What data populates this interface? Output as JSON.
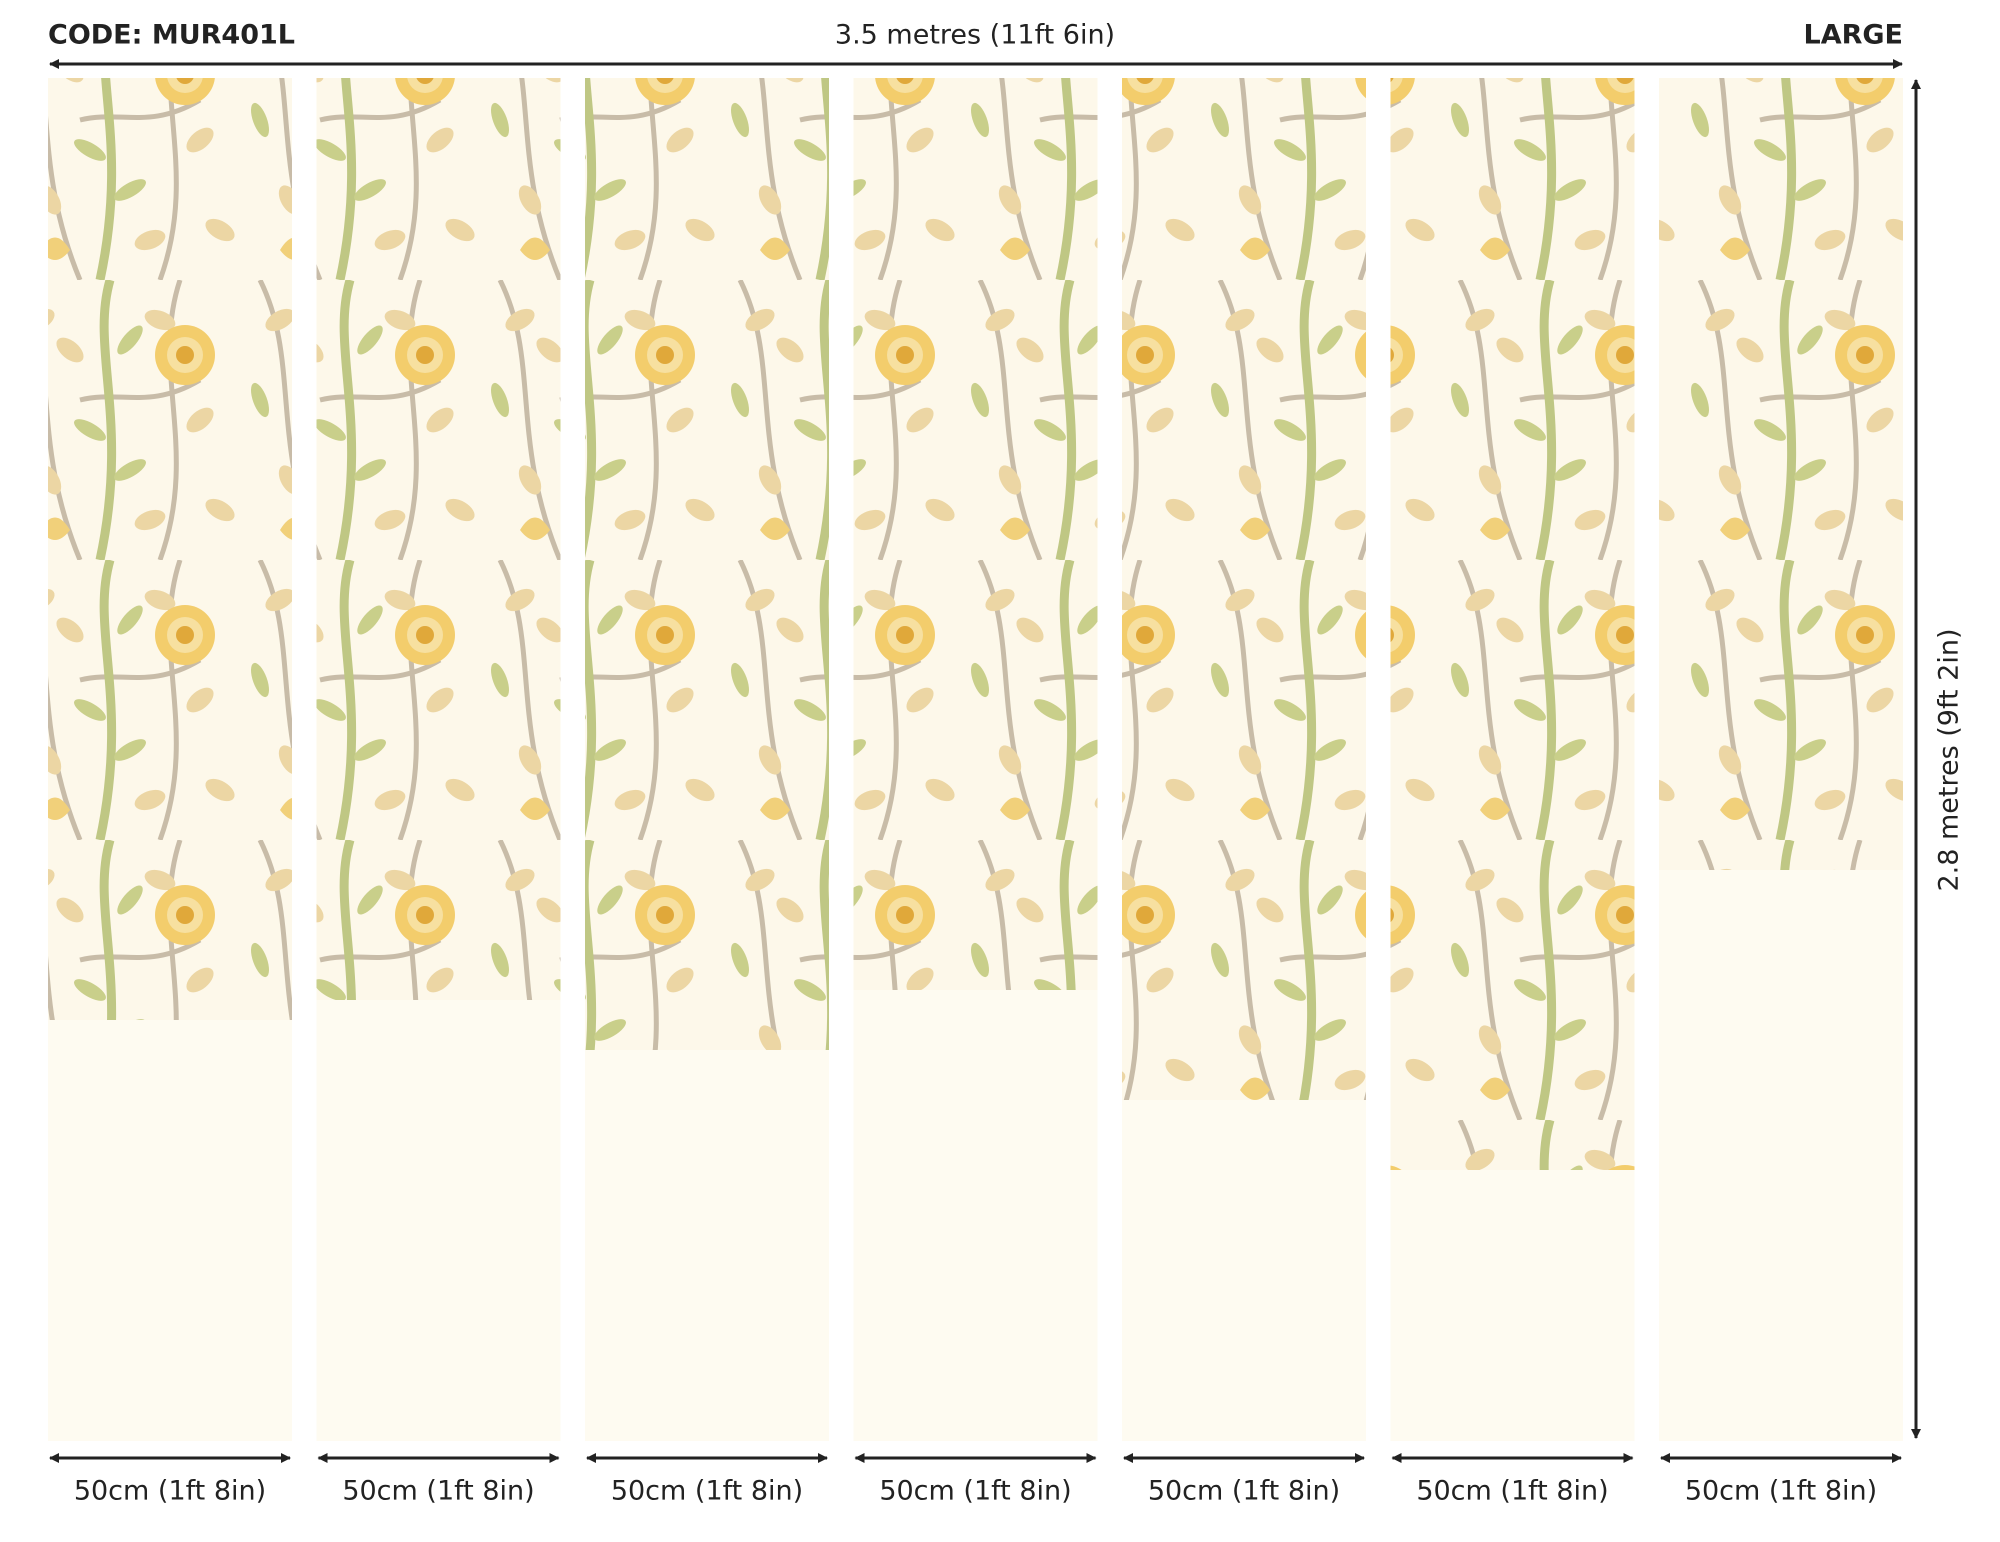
{
  "header": {
    "code": "CODE: MUR401L",
    "width": "3.5 metres (11ft 6in)",
    "size": "LARGE"
  },
  "height": "2.8 metres (9ft 2in)",
  "panels": [
    {
      "label": "50cm (1ft 8in)"
    },
    {
      "label": "50cm (1ft 8in)"
    },
    {
      "label": "50cm (1ft 8in)"
    },
    {
      "label": "50cm (1ft 8in)"
    },
    {
      "label": "50cm (1ft 8in)"
    },
    {
      "label": "50cm (1ft 8in)"
    },
    {
      "label": "50cm (1ft 8in)"
    }
  ]
}
